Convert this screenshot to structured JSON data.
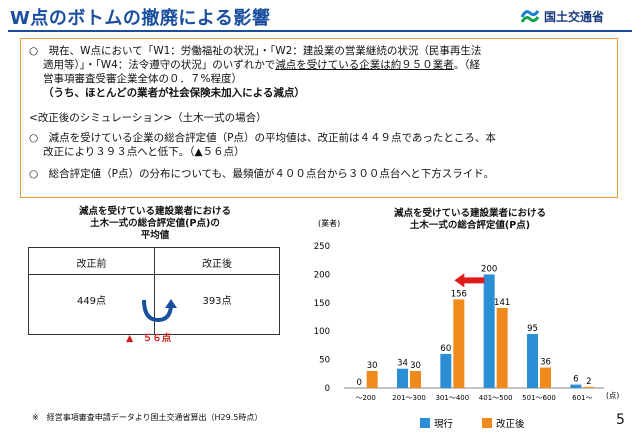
{
  "header": {
    "title": "W点のボトムの撤廃による影響",
    "logo_text": "国土交通省"
  },
  "summary": {
    "p1_line1": "○　現在、W点において「W1：労働福祉の状況」・「W2：建設業の営業継続の状況（民事再生法",
    "p1_line2_a": "適用等）」・「W4：法令遵守の状況」のいずれかで",
    "p1_line2_b": "減点を受けている企業は約９５０業者",
    "p1_line2_c": "。（経",
    "p1_line3": "営事項審査受審企業全体の０．７%程度）",
    "p1_line4": "（うち、ほとんどの業者が社会保険未加入による減点）",
    "sim_heading": "<改正後のシミュレーション>（土木一式の場合）",
    "p2_line1": "○　減点を受けている企業の総合評定値（P点）の平均値は、改正前は４４９点であったところ、本",
    "p2_line2": "改正により３９３点へと低下。（▲５６点）",
    "p3_line1": "○　総合評定値（P点）の分布についても、最頻値が４００点台から３００点台へと下方スライド。"
  },
  "left_panel": {
    "title_line1": "減点を受けている建設業者における",
    "title_line2": "土木一式の総合評定値(P点)の",
    "title_line3": "平均値",
    "col_before": "改正前",
    "col_after": "改正後",
    "val_before": "449点",
    "val_after": "393点",
    "delta": "▲　５６点"
  },
  "chart_data": {
    "type": "bar",
    "title_line1": "減点を受けている建設業者における",
    "title_line2": "土木一式の総合評定値(P点)",
    "ylabel": "(業者)",
    "xlabel": "(点)",
    "ylim": [
      0,
      250
    ],
    "yticks": [
      0,
      50,
      100,
      150,
      200,
      250
    ],
    "categories": [
      "～200",
      "201～300",
      "301～400",
      "401～500",
      "501～600",
      "601～"
    ],
    "series": [
      {
        "name": "現行",
        "color": "#2b8fd6",
        "values": [
          0,
          34,
          60,
          200,
          95,
          6
        ]
      },
      {
        "name": "改正後",
        "color": "#f08a1c",
        "values": [
          30,
          30,
          156,
          141,
          36,
          2
        ]
      }
    ],
    "legend_position": "bottom",
    "grid": false
  },
  "footer": {
    "footnote": "※　経営事項審査申請データより国土交通省算出（H29.5時点）",
    "page": "5"
  }
}
